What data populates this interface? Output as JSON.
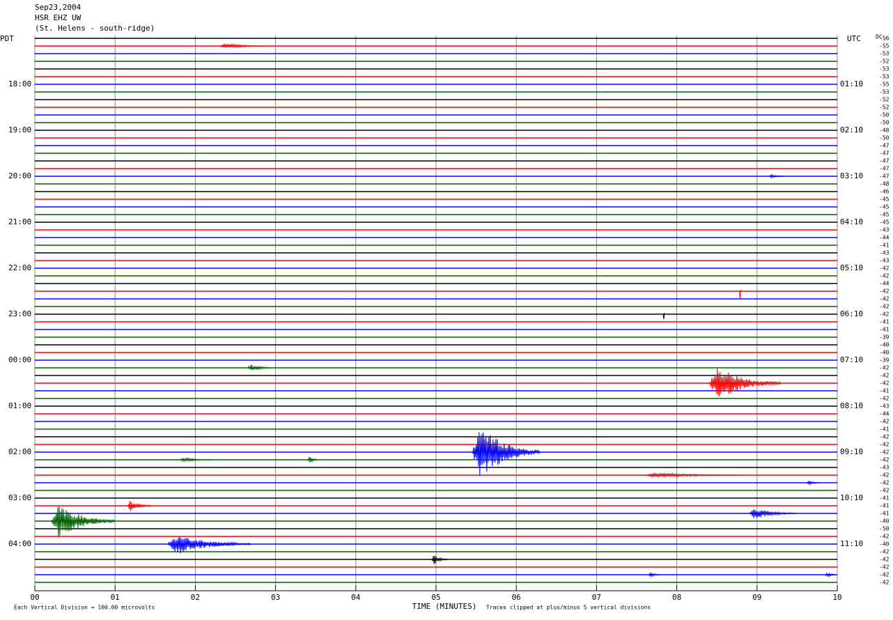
{
  "chart_data": {
    "type": "helicorder",
    "header": [
      "Sep23,2004",
      "HSR EHZ UW",
      "(St. Helens - south-ridge)"
    ],
    "left_zone": "PDT",
    "right_zone": "UTC",
    "dc_header": "DC",
    "xlabel": "TIME (MINUTES)",
    "scale_note": "Each Vertical Division =  100.00 microvolts",
    "clip_note": "Traces clipped at plus/minus 5 vertical divisions",
    "xlim": [
      0,
      10
    ],
    "xticks": [
      {
        "value": 0,
        "label": "00"
      },
      {
        "value": 1,
        "label": "01"
      },
      {
        "value": 2,
        "label": "02"
      },
      {
        "value": 3,
        "label": "03"
      },
      {
        "value": 4,
        "label": "04"
      },
      {
        "value": 5,
        "label": "05"
      },
      {
        "value": 6,
        "label": "06"
      },
      {
        "value": 7,
        "label": "07"
      },
      {
        "value": 8,
        "label": "08"
      },
      {
        "value": 9,
        "label": "09"
      },
      {
        "value": 10,
        "label": "10"
      }
    ],
    "trace_colors": [
      "#000000",
      "#ff0000",
      "#0000ff",
      "#006400"
    ],
    "left_labels": {
      "every": 6,
      "first": 6,
      "labels": [
        "18:00",
        "19:00",
        "20:00",
        "21:00",
        "22:00",
        "23:00",
        "00:00",
        "01:00",
        "02:00",
        "03:00",
        "04:00"
      ]
    },
    "right_labels": [
      "01:10",
      "02:10",
      "03:10",
      "04:10",
      "05:10",
      "06:10",
      "07:10",
      "08:10",
      "09:10",
      "10:10",
      "11:10"
    ],
    "dc": [
      -56,
      -55,
      -53,
      -52,
      -53,
      -53,
      -55,
      -53,
      -52,
      -52,
      -50,
      -50,
      -48,
      -50,
      -47,
      -47,
      -47,
      -47,
      -47,
      -48,
      -46,
      -45,
      -45,
      -45,
      -45,
      -43,
      -44,
      -41,
      -43,
      -43,
      -42,
      -42,
      -44,
      -42,
      -42,
      -42,
      -42,
      -41,
      -41,
      -39,
      -40,
      -40,
      -39,
      -42,
      -42,
      -42,
      -41,
      -42,
      -43,
      -44,
      -42,
      -41,
      -42,
      -42,
      -42,
      -42,
      -43,
      -42,
      -42,
      -42,
      -41,
      -41,
      -41,
      -40,
      -50,
      -42,
      -40,
      -42,
      -42,
      -42,
      -42,
      -42
    ],
    "events": [
      {
        "trace": 1,
        "start_min": 2.3,
        "end_min": 2.9,
        "amplitude": 4
      },
      {
        "trace": 18,
        "start_min": 9.15,
        "end_min": 9.35,
        "amplitude": 3
      },
      {
        "trace": 33,
        "start_min": 8.78,
        "end_min": 8.8,
        "amplitude": 30
      },
      {
        "trace": 36,
        "start_min": 7.83,
        "end_min": 7.85,
        "amplitude": 28
      },
      {
        "trace": 43,
        "start_min": 2.65,
        "end_min": 2.95,
        "amplitude": 6
      },
      {
        "trace": 45,
        "start_min": 8.4,
        "end_min": 9.3,
        "amplitude": 25
      },
      {
        "trace": 54,
        "start_min": 5.45,
        "end_min": 6.3,
        "amplitude": 40
      },
      {
        "trace": 55,
        "start_min": 1.8,
        "end_min": 2.25,
        "amplitude": 3
      },
      {
        "trace": 55,
        "start_min": 3.4,
        "end_min": 3.55,
        "amplitude": 5
      },
      {
        "trace": 57,
        "start_min": 7.6,
        "end_min": 8.8,
        "amplitude": 4
      },
      {
        "trace": 58,
        "start_min": 9.62,
        "end_min": 9.78,
        "amplitude": 4
      },
      {
        "trace": 61,
        "start_min": 1.15,
        "end_min": 1.45,
        "amplitude": 8
      },
      {
        "trace": 62,
        "start_min": 8.9,
        "end_min": 9.5,
        "amplitude": 8
      },
      {
        "trace": 63,
        "start_min": 0.2,
        "end_min": 1.0,
        "amplitude": 25
      },
      {
        "trace": 66,
        "start_min": 1.65,
        "end_min": 2.7,
        "amplitude": 15
      },
      {
        "trace": 68,
        "start_min": 4.95,
        "end_min": 5.15,
        "amplitude": 8
      },
      {
        "trace": 70,
        "start_min": 7.65,
        "end_min": 7.8,
        "amplitude": 4
      },
      {
        "trace": 70,
        "start_min": 9.85,
        "end_min": 10,
        "amplitude": 4
      }
    ]
  }
}
